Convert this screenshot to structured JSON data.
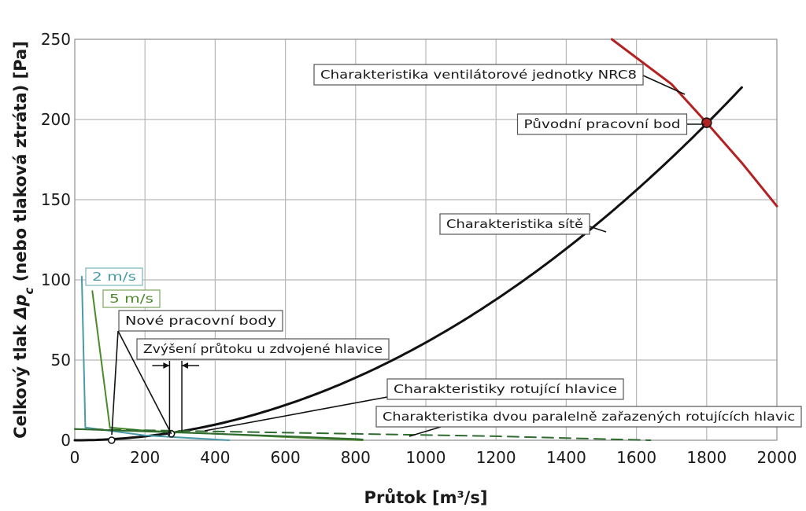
{
  "chart_data": {
    "type": "line",
    "xlabel": "Průtok [m³/s]",
    "ylabel_prefix": "Celkový tlak",
    "ylabel_symbol": "Δp",
    "ylabel_subscript": "c",
    "ylabel_suffix": "(nebo tlaková ztráta) [Pa]",
    "xlim": [
      0,
      2000
    ],
    "ylim": [
      0,
      250
    ],
    "x_ticks": [
      0,
      200,
      400,
      600,
      800,
      1000,
      1200,
      1400,
      1600,
      1800,
      2000
    ],
    "y_ticks": [
      0,
      50,
      100,
      150,
      200,
      250
    ],
    "grid": true,
    "series": [
      {
        "name": "Charakteristika ventilátorové jednotky NRC8",
        "color": "#b22222",
        "x": [
          1530,
          1700,
          1800,
          1900,
          2000
        ],
        "y": [
          250,
          222,
          198,
          173,
          146
        ]
      },
      {
        "name": "Charakteristika sítě",
        "color": "#111111",
        "x": [
          0,
          200,
          400,
          600,
          800,
          1000,
          1200,
          1400,
          1600,
          1800,
          1900
        ],
        "y": [
          0,
          2.3,
          9.2,
          20.6,
          36.6,
          57.2,
          82.4,
          112.1,
          146.4,
          185.3,
          220
        ]
      },
      {
        "name": "2 m/s",
        "color": "#4a9aaa",
        "x": [
          20,
          30,
          200,
          440
        ],
        "y": [
          102,
          8,
          3,
          0
        ]
      },
      {
        "name": "5 m/s",
        "color": "#4a8a2a",
        "x": [
          50,
          100,
          200,
          400,
          600,
          820
        ],
        "y": [
          93,
          8,
          6,
          4,
          2,
          0
        ]
      },
      {
        "name": "Charakteristiky rotující hlavice",
        "color": "#2f6a2f",
        "x": [
          0,
          200,
          400,
          600,
          800,
          820
        ],
        "y": [
          7,
          5.5,
          4,
          2.5,
          0.8,
          0.5
        ]
      },
      {
        "name": "Charakteristika dvou paralelně zařazených rotujících hlavic",
        "color": "#2f6a2f",
        "dashed": true,
        "x": [
          0,
          400,
          800,
          1200,
          1640
        ],
        "y": [
          7,
          5.5,
          4,
          2.5,
          0
        ]
      }
    ],
    "points": [
      {
        "name": "Původní pracovní bod",
        "x": 1800,
        "y": 198
      },
      {
        "name": "Nové pracovní body",
        "x": 105,
        "y": 0
      },
      {
        "name": "Nové pracovní body",
        "x": 275,
        "y": 4
      }
    ],
    "annotations": [
      {
        "key": "fan",
        "text": "Charakteristika ventilátorové jednotky NRC8"
      },
      {
        "key": "orig",
        "text": "Původní pracovní bod"
      },
      {
        "key": "net",
        "text": "Charakteristika sítě"
      },
      {
        "key": "s2",
        "text": "2 m/s"
      },
      {
        "key": "s5",
        "text": "5 m/s"
      },
      {
        "key": "new",
        "text": "Nové pracovní body"
      },
      {
        "key": "incr",
        "text": "Zvýšení průtoku u zdvojené hlavice"
      },
      {
        "key": "rot",
        "text": "Charakteristiky rotující hlavice"
      },
      {
        "key": "par",
        "text": "Charakteristika dvou paralelně zařazených rotujících hlavic"
      }
    ]
  }
}
